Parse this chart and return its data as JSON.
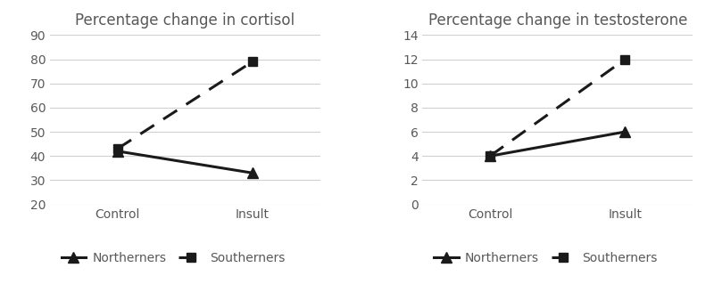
{
  "cortisol": {
    "title": "Percentage change in cortisol",
    "northerners": [
      42,
      33
    ],
    "southerners": [
      43,
      79
    ],
    "ylim": [
      20,
      90
    ],
    "yticks": [
      20,
      30,
      40,
      50,
      60,
      70,
      80,
      90
    ]
  },
  "testosterone": {
    "title": "Percentage change in testosterone",
    "northerners": [
      4,
      6
    ],
    "southerners": [
      4,
      12
    ],
    "ylim": [
      0,
      14
    ],
    "yticks": [
      0,
      2,
      4,
      6,
      8,
      10,
      12,
      14
    ]
  },
  "x_labels": [
    "Control",
    "Insult"
  ],
  "x_positions": [
    0,
    1
  ],
  "line_color": "#1a1a1a",
  "bg_color": "#ffffff",
  "grid_color": "#d0d0d0",
  "legend_northerners": "Northerners",
  "legend_southerners": "Southerners",
  "title_fontsize": 12,
  "tick_fontsize": 10,
  "legend_fontsize": 10,
  "title_color": "#595959"
}
